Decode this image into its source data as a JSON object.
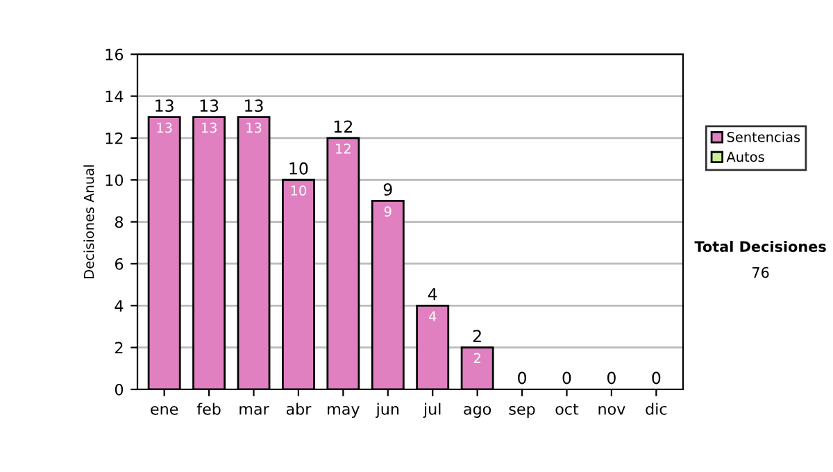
{
  "chart_data": {
    "type": "bar",
    "stacked": true,
    "ylabel": "Decisiones Anual",
    "categories": [
      "ene",
      "feb",
      "mar",
      "abr",
      "may",
      "jun",
      "jul",
      "ago",
      "sep",
      "oct",
      "nov",
      "dic"
    ],
    "series": [
      {
        "name": "Sentencias",
        "color": "#e080c0",
        "values": [
          13,
          13,
          13,
          10,
          12,
          9,
          4,
          2,
          0,
          0,
          0,
          0
        ],
        "value_labels": [
          "13",
          "13",
          "13",
          "10",
          "12",
          "9",
          "4",
          "2",
          null,
          null,
          null,
          null
        ]
      },
      {
        "name": "Autos",
        "color": "#ccee99",
        "values": [
          0,
          0,
          0,
          0,
          0,
          0,
          0,
          0,
          0,
          0,
          0,
          0
        ]
      }
    ],
    "totals": [
      "13",
      "13",
      "13",
      "10",
      "12",
      "9",
      "4",
      "2",
      "0",
      "0",
      "0",
      "0"
    ],
    "ylim": [
      0,
      16
    ],
    "yticks": [
      0,
      2,
      4,
      6,
      8,
      10,
      12,
      14,
      16
    ],
    "grid": "y",
    "legend": "right",
    "annotations": [
      "Total Decisiones",
      "76"
    ]
  }
}
